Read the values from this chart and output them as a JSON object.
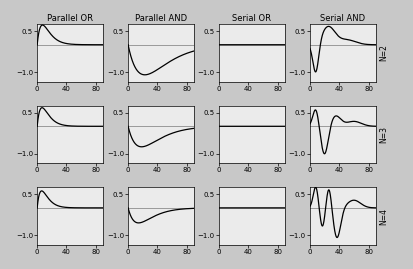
{
  "titles": [
    "Parallel OR",
    "Parallel AND",
    "Serial OR",
    "Serial AND"
  ],
  "row_labels": [
    "N=2",
    "N=3",
    "N=4"
  ],
  "xlim": [
    0,
    90
  ],
  "ylim": [
    -1.35,
    0.75
  ],
  "yticks": [
    -1.0,
    0.5
  ],
  "xticks": [
    0,
    40,
    80
  ],
  "background_color": "#c8c8c8",
  "plot_bg_color": "#ebebeb",
  "line_color": "#000000",
  "hline_color": "#999999",
  "hline_y": 0.0,
  "par_or": {
    "n2": {
      "amp": 0.72,
      "peak_t": 4,
      "decay": 0.55
    },
    "n3": {
      "amp": 0.68,
      "peak_t": 4,
      "decay": 0.6
    },
    "n4": {
      "amp": 0.62,
      "peak_t": 4,
      "decay": 0.65
    }
  },
  "par_and": {
    "n2": {
      "amp": -1.1,
      "peak_t": 8,
      "decay": 0.35
    },
    "n3": {
      "amp": -0.75,
      "peak_t": 7,
      "decay": 0.38
    },
    "n4": {
      "amp": -0.55,
      "peak_t": 6,
      "decay": 0.42
    }
  },
  "ser_and_n2": {
    "g1": {
      "amp": -1.1,
      "mu": 8,
      "sig": 4
    },
    "g2": {
      "amp": 0.65,
      "mu": 25,
      "sig": 9
    },
    "g3": {
      "amp": 0.18,
      "mu": 50,
      "sig": 12
    }
  },
  "ser_and_n3": {
    "g1": {
      "amp": 0.65,
      "mu": 8,
      "sig": 4
    },
    "g2": {
      "amp": -1.05,
      "mu": 20,
      "sig": 5
    },
    "g3": {
      "amp": 0.38,
      "mu": 35,
      "sig": 7
    },
    "g4": {
      "amp": 0.18,
      "mu": 60,
      "sig": 10
    }
  },
  "ser_and_n4": {
    "g1": {
      "amp": 0.78,
      "mu": 8,
      "sig": 3.5
    },
    "g2": {
      "amp": -0.72,
      "mu": 17,
      "sig": 3.5
    },
    "g3": {
      "amp": 0.78,
      "mu": 26,
      "sig": 3.5
    },
    "g4": {
      "amp": -1.1,
      "mu": 37,
      "sig": 5
    },
    "g5": {
      "amp": 0.28,
      "mu": 60,
      "sig": 9
    }
  }
}
